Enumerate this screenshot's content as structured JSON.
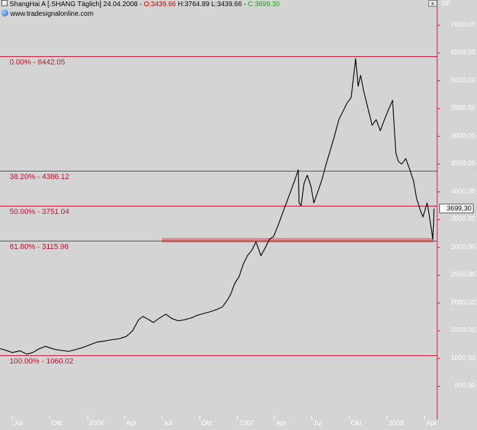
{
  "header": {
    "name_prefix": "ShangHai A [.SHANG  Täglich] 24.04.2008 - ",
    "open": "O:3439.66",
    "hlc": " H:3764.89 L:3439.66 - ",
    "close": "C:3699.30",
    "website": "www.tradesignalonline.com",
    "close_button": "x",
    "unit": "XP"
  },
  "colors": {
    "background": "#d4d4d4",
    "price_line": "#000000",
    "fib_line": "#c8102e",
    "support_band": "#e07a7f",
    "axis_text": "#ffffff"
  },
  "current_price_label": "3699,30",
  "chart_data": {
    "type": "line",
    "title": "",
    "xlabel": "",
    "ylabel": "",
    "ylim": [
      0,
      7300
    ],
    "x_range": [
      "2005-06-01",
      "2008-04-30"
    ],
    "x_ticks": [
      {
        "date": "2005-07-01",
        "label": "Jul"
      },
      {
        "date": "2005-10-01",
        "label": "Okt"
      },
      {
        "date": "2006-01-01",
        "label": "2006"
      },
      {
        "date": "2006-04-01",
        "label": "Apr"
      },
      {
        "date": "2006-07-01",
        "label": "Jul"
      },
      {
        "date": "2006-10-01",
        "label": "Okt"
      },
      {
        "date": "2007-01-01",
        "label": "2007"
      },
      {
        "date": "2007-04-01",
        "label": "Apr"
      },
      {
        "date": "2007-07-01",
        "label": "Jul"
      },
      {
        "date": "2007-10-01",
        "label": "Okt"
      },
      {
        "date": "2008-01-01",
        "label": "2008"
      },
      {
        "date": "2008-04-01",
        "label": "Apr"
      }
    ],
    "y_ticks": [
      {
        "value": 7000,
        "label": "7000,00"
      },
      {
        "value": 6500,
        "label": "6500,00"
      },
      {
        "value": 6000,
        "label": "6000,00"
      },
      {
        "value": 5500,
        "label": "5500,00"
      },
      {
        "value": 5000,
        "label": "5000,00"
      },
      {
        "value": 4500,
        "label": "4500,00"
      },
      {
        "value": 4000,
        "label": "4000,00"
      },
      {
        "value": 3500,
        "label": "3500,00"
      },
      {
        "value": 3000,
        "label": "3000,00"
      },
      {
        "value": 2500,
        "label": "2500,00"
      },
      {
        "value": 2000,
        "label": "2000,00"
      },
      {
        "value": 1500,
        "label": "1500,00"
      },
      {
        "value": 1000,
        "label": "1000,00"
      },
      {
        "value": 500,
        "label": "500,00"
      }
    ],
    "fib_levels": [
      {
        "value": 6442.05,
        "label": "0.00% - 6442.05"
      },
      {
        "value": 4386.12,
        "label": "38.20% - 4386.12"
      },
      {
        "value": 3751.04,
        "label": "50.00% - 3751.04"
      },
      {
        "value": 3115.96,
        "label": "61.80% - 3115.96"
      },
      {
        "value": 1060.02,
        "label": "100.00% - 1060.02"
      }
    ],
    "support_zone": {
      "from": "2006-07-01",
      "to": "2008-04-24",
      "low": 3090,
      "high": 3170
    },
    "series": [
      {
        "points": [
          [
            "2005-06-01",
            1180
          ],
          [
            "2005-06-15",
            1150
          ],
          [
            "2005-07-01",
            1110
          ],
          [
            "2005-07-20",
            1140
          ],
          [
            "2005-08-05",
            1080
          ],
          [
            "2005-08-20",
            1110
          ],
          [
            "2005-09-05",
            1180
          ],
          [
            "2005-09-20",
            1220
          ],
          [
            "2005-10-10",
            1170
          ],
          [
            "2005-10-25",
            1150
          ],
          [
            "2005-11-15",
            1130
          ],
          [
            "2005-12-01",
            1160
          ],
          [
            "2005-12-20",
            1200
          ],
          [
            "2006-01-10",
            1260
          ],
          [
            "2006-01-25",
            1300
          ],
          [
            "2006-02-15",
            1320
          ],
          [
            "2006-03-01",
            1340
          ],
          [
            "2006-03-20",
            1360
          ],
          [
            "2006-04-05",
            1400
          ],
          [
            "2006-04-20",
            1500
          ],
          [
            "2006-05-05",
            1700
          ],
          [
            "2006-05-15",
            1760
          ],
          [
            "2006-05-25",
            1720
          ],
          [
            "2006-06-10",
            1650
          ],
          [
            "2006-06-25",
            1730
          ],
          [
            "2006-07-10",
            1800
          ],
          [
            "2006-07-25",
            1720
          ],
          [
            "2006-08-10",
            1680
          ],
          [
            "2006-08-25",
            1700
          ],
          [
            "2006-09-10",
            1730
          ],
          [
            "2006-09-25",
            1780
          ],
          [
            "2006-10-10",
            1810
          ],
          [
            "2006-10-25",
            1840
          ],
          [
            "2006-11-10",
            1880
          ],
          [
            "2006-11-25",
            1930
          ],
          [
            "2006-12-05",
            2030
          ],
          [
            "2006-12-15",
            2150
          ],
          [
            "2006-12-25",
            2350
          ],
          [
            "2007-01-05",
            2480
          ],
          [
            "2007-01-15",
            2700
          ],
          [
            "2007-01-25",
            2850
          ],
          [
            "2007-02-05",
            2950
          ],
          [
            "2007-02-15",
            3100
          ],
          [
            "2007-02-27",
            2850
          ],
          [
            "2007-03-10",
            3000
          ],
          [
            "2007-03-20",
            3150
          ],
          [
            "2007-03-30",
            3200
          ],
          [
            "2007-04-10",
            3400
          ],
          [
            "2007-04-20",
            3600
          ],
          [
            "2007-04-30",
            3800
          ],
          [
            "2007-05-10",
            4000
          ],
          [
            "2007-05-20",
            4200
          ],
          [
            "2007-05-29",
            4400
          ],
          [
            "2007-05-31",
            3800
          ],
          [
            "2007-06-05",
            3750
          ],
          [
            "2007-06-12",
            4150
          ],
          [
            "2007-06-20",
            4300
          ],
          [
            "2007-06-29",
            4100
          ],
          [
            "2007-07-06",
            3800
          ],
          [
            "2007-07-13",
            3950
          ],
          [
            "2007-07-25",
            4200
          ],
          [
            "2007-08-05",
            4500
          ],
          [
            "2007-08-15",
            4750
          ],
          [
            "2007-08-25",
            5000
          ],
          [
            "2007-09-05",
            5300
          ],
          [
            "2007-09-15",
            5450
          ],
          [
            "2007-09-25",
            5600
          ],
          [
            "2007-10-05",
            5700
          ],
          [
            "2007-10-16",
            6400
          ],
          [
            "2007-10-22",
            5900
          ],
          [
            "2007-10-28",
            6100
          ],
          [
            "2007-11-05",
            5800
          ],
          [
            "2007-11-15",
            5500
          ],
          [
            "2007-11-25",
            5200
          ],
          [
            "2007-12-05",
            5300
          ],
          [
            "2007-12-15",
            5100
          ],
          [
            "2007-12-25",
            5300
          ],
          [
            "2008-01-05",
            5500
          ],
          [
            "2008-01-14",
            5650
          ],
          [
            "2008-01-22",
            4700
          ],
          [
            "2008-01-28",
            4550
          ],
          [
            "2008-02-05",
            4500
          ],
          [
            "2008-02-15",
            4600
          ],
          [
            "2008-02-25",
            4400
          ],
          [
            "2008-03-05",
            4200
          ],
          [
            "2008-03-12",
            3900
          ],
          [
            "2008-03-20",
            3700
          ],
          [
            "2008-03-28",
            3550
          ],
          [
            "2008-04-07",
            3800
          ],
          [
            "2008-04-12",
            3600
          ],
          [
            "2008-04-18",
            3300
          ],
          [
            "2008-04-21",
            3150
          ],
          [
            "2008-04-23",
            3450
          ],
          [
            "2008-04-24",
            3699.3
          ]
        ]
      }
    ]
  }
}
